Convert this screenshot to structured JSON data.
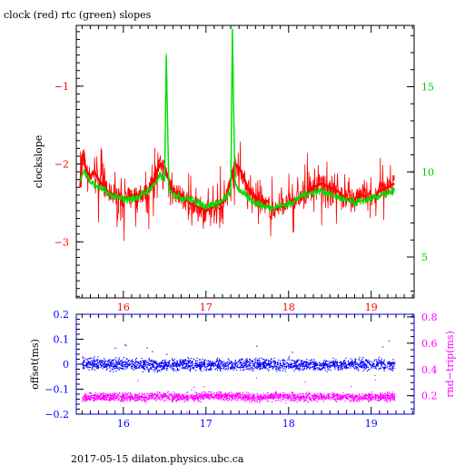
{
  "title": "clock (red) rtc (green) slopes",
  "footer": "2017-05-15  dilaton.physics.ubc.ca",
  "colors": {
    "clock": "#ff0000",
    "rtc": "#00dd00",
    "offset": "#0000ff",
    "rndtrip": "#ff00ff",
    "axis": "#000000"
  },
  "chart_data": [
    {
      "type": "line",
      "title": "clock (red) rtc (green) slopes",
      "xlabel": "",
      "ylabel": "clockslope",
      "ylabel_right": "",
      "xlim": [
        15.43,
        19.52
      ],
      "xticks": [
        "16",
        "17",
        "18",
        "19"
      ],
      "ylim": [
        -3.72,
        -0.22
      ],
      "yticks": [
        "−1",
        "−2",
        "−3"
      ],
      "ylim_right": [
        2.6,
        18.6
      ],
      "yticks_right": [
        "5",
        "10",
        "15"
      ],
      "series": [
        {
          "name": "clock",
          "axis": "left",
          "x": [
            15.48,
            15.5,
            15.52,
            15.53,
            15.56,
            15.6,
            15.65,
            15.7,
            15.8,
            15.9,
            16.0,
            16.1,
            16.2,
            16.3,
            16.35,
            16.4,
            16.45,
            16.5,
            16.55,
            16.6,
            16.7,
            16.8,
            16.9,
            17.0,
            17.1,
            17.2,
            17.25,
            17.3,
            17.35,
            17.4,
            17.45,
            17.5,
            17.6,
            17.7,
            17.8,
            17.9,
            18.0,
            18.1,
            18.2,
            18.3,
            18.4,
            18.5,
            18.6,
            18.7,
            18.8,
            18.9,
            19.0,
            19.1,
            19.2,
            19.28
          ],
          "y": [
            -2.3,
            -1.9,
            -1.85,
            -2.0,
            -2.1,
            -2.15,
            -2.1,
            -2.2,
            -2.35,
            -2.4,
            -2.45,
            -2.4,
            -2.4,
            -2.35,
            -2.25,
            -2.1,
            -2.0,
            -2.05,
            -2.2,
            -2.35,
            -2.4,
            -2.5,
            -2.55,
            -2.6,
            -2.55,
            -2.5,
            -2.4,
            -2.2,
            -2.0,
            -2.05,
            -2.15,
            -2.3,
            -2.45,
            -2.5,
            -2.6,
            -2.55,
            -2.5,
            -2.45,
            -2.4,
            -2.3,
            -2.25,
            -2.3,
            -2.35,
            -2.45,
            -2.45,
            -2.4,
            -2.45,
            -2.35,
            -2.3,
            -2.25
          ]
        },
        {
          "name": "rtc",
          "axis": "right",
          "x": [
            15.48,
            15.53,
            15.6,
            15.7,
            15.8,
            15.9,
            16.0,
            16.1,
            16.2,
            16.3,
            16.4,
            16.45,
            16.5,
            16.52,
            16.55,
            16.6,
            16.7,
            16.8,
            16.9,
            17.0,
            17.1,
            17.2,
            17.3,
            17.32,
            17.35,
            17.4,
            17.5,
            17.6,
            17.7,
            17.8,
            17.9,
            18.0,
            18.1,
            18.2,
            18.3,
            18.4,
            18.5,
            18.6,
            18.7,
            18.8,
            18.9,
            19.0,
            19.1,
            19.2,
            19.28
          ],
          "y": [
            9.6,
            10.1,
            9.4,
            9.1,
            8.8,
            8.5,
            8.4,
            8.4,
            8.6,
            8.9,
            9.4,
            9.8,
            9.5,
            16.8,
            9.0,
            8.7,
            8.5,
            8.4,
            8.2,
            8.0,
            8.1,
            8.3,
            8.8,
            18.4,
            9.3,
            9.0,
            8.5,
            8.2,
            8.0,
            7.9,
            8.0,
            8.1,
            8.4,
            8.7,
            8.8,
            8.9,
            8.7,
            8.5,
            8.3,
            8.2,
            8.3,
            8.4,
            8.6,
            8.7,
            8.9
          ]
        }
      ]
    },
    {
      "type": "scatter",
      "title": "",
      "xlabel": "",
      "ylabel": "offset(ms)",
      "ylabel_right": "rnd−trip(ms)",
      "xlim": [
        15.43,
        19.52
      ],
      "xticks": [
        "16",
        "17",
        "18",
        "19"
      ],
      "ylim": [
        -0.2,
        0.2
      ],
      "yticks": [
        "0.2",
        "0.1",
        "0",
        "−0.1",
        "−0.2"
      ],
      "ylim_right": [
        0.06,
        0.82
      ],
      "yticks_right": [
        "0.8",
        "0.6",
        "0.4",
        "0.2"
      ],
      "series": [
        {
          "name": "offset",
          "axis": "left",
          "x": [
            15.5,
            15.8,
            16.1,
            16.4,
            16.7,
            17.0,
            17.3,
            17.6,
            17.9,
            18.2,
            18.5,
            18.8,
            19.1,
            19.28
          ],
          "y": [
            0.005,
            0.0,
            0.002,
            -0.003,
            0.001,
            0.0,
            -0.002,
            0.003,
            0.0,
            0.001,
            -0.001,
            0.002,
            0.0,
            0.001
          ]
        },
        {
          "name": "rnd-trip",
          "axis": "right",
          "x": [
            15.5,
            15.8,
            16.1,
            16.4,
            16.7,
            17.0,
            17.3,
            17.6,
            17.9,
            18.2,
            18.5,
            18.8,
            19.1,
            19.28
          ],
          "y": [
            0.19,
            0.2,
            0.19,
            0.2,
            0.19,
            0.2,
            0.2,
            0.19,
            0.2,
            0.19,
            0.2,
            0.19,
            0.2,
            0.19
          ]
        }
      ]
    }
  ]
}
